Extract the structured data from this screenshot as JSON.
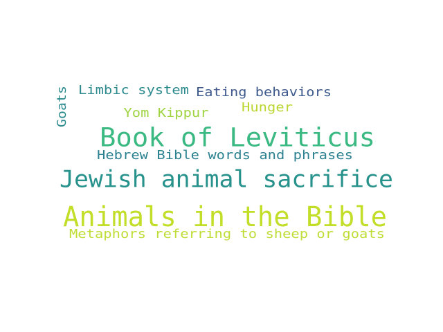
{
  "words": [
    {
      "text": "Animals in the Bible",
      "color": "#c2de28"
    },
    {
      "text": "Jewish animal sacrifice",
      "color": "#27918c"
    },
    {
      "text": "Book of Leviticus",
      "color": "#3ab982"
    },
    {
      "text": "Hebrew Bible words and phrases",
      "color": "#2b8190"
    },
    {
      "text": "Metaphors referring to sheep or goats",
      "color": "#bedd36"
    },
    {
      "text": "Limbic system",
      "color": "#2d8a8d"
    },
    {
      "text": "Eating behaviors",
      "color": "#3e5a8d"
    },
    {
      "text": "Yom Kippur",
      "color": "#9fd440"
    },
    {
      "text": "Hunger",
      "color": "#bcd630"
    },
    {
      "text": "Goats",
      "color": "#2b8b8e"
    }
  ]
}
